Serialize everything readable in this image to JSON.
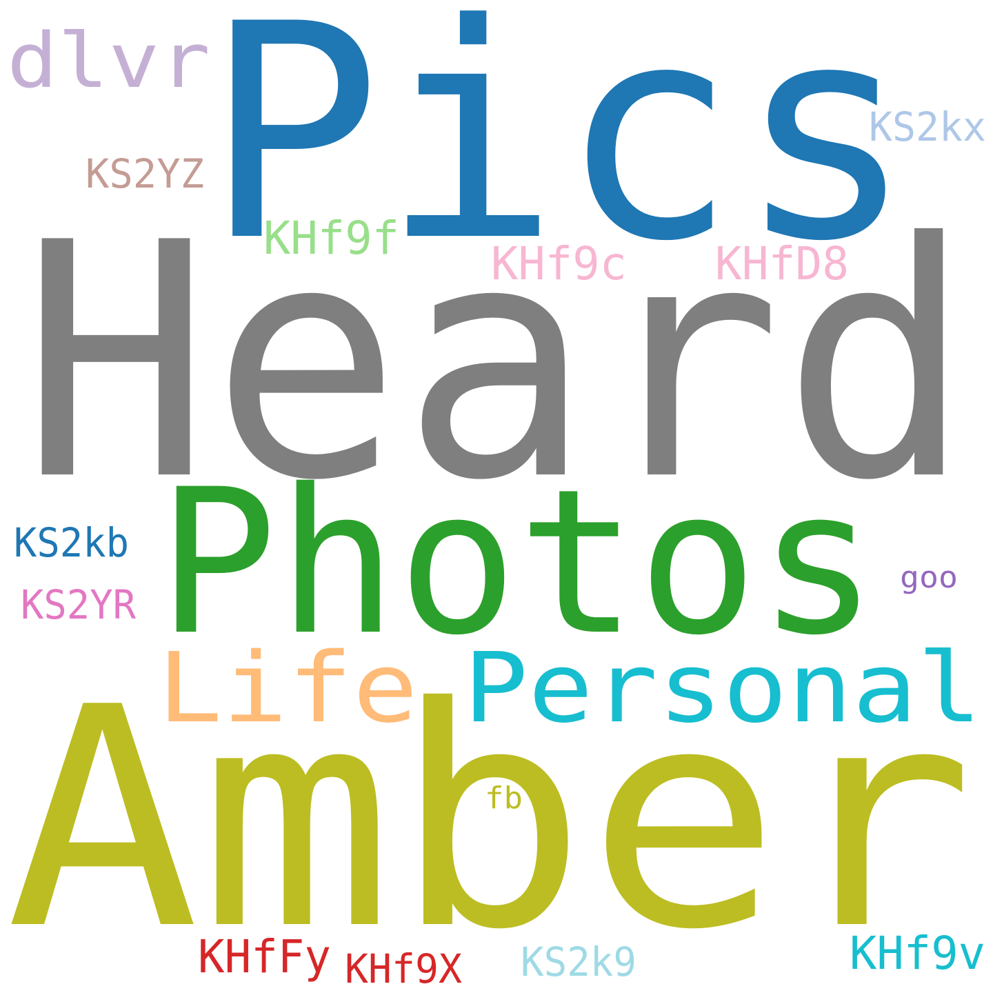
{
  "words": [
    {
      "key": "pics",
      "text": "Pics",
      "color": "#1f77b4"
    },
    {
      "key": "heard",
      "text": "Heard",
      "color": "#7f7f7f"
    },
    {
      "key": "photos",
      "text": "Photos",
      "color": "#2ca02c"
    },
    {
      "key": "amber",
      "text": "Amber",
      "color": "#bcbd22"
    },
    {
      "key": "personal",
      "text": "Personal",
      "color": "#17becf"
    },
    {
      "key": "life",
      "text": "Life",
      "color": "#ffbb78"
    },
    {
      "key": "dlvr",
      "text": "dlvr",
      "color": "#c5b0d5"
    },
    {
      "key": "ks2yz",
      "text": "KS2YZ",
      "color": "#c49c94"
    },
    {
      "key": "ks2kx",
      "text": "KS2kx",
      "color": "#aec7e8"
    },
    {
      "key": "khf9f",
      "text": "KHf9f",
      "color": "#98df8a"
    },
    {
      "key": "khf9c",
      "text": "KHf9c",
      "color": "#f7b6d2"
    },
    {
      "key": "khfd8",
      "text": "KHfD8",
      "color": "#f7b6d2"
    },
    {
      "key": "ks2kb",
      "text": "KS2kb",
      "color": "#1f77b4"
    },
    {
      "key": "ks2yr",
      "text": "KS2YR",
      "color": "#e377c2"
    },
    {
      "key": "goo",
      "text": "goo",
      "color": "#9467bd"
    },
    {
      "key": "fb",
      "text": "fb",
      "color": "#bcbd22"
    },
    {
      "key": "khffy",
      "text": "KHfFy",
      "color": "#d62728"
    },
    {
      "key": "khf9x",
      "text": "KHf9X",
      "color": "#d62728"
    },
    {
      "key": "ks2k9",
      "text": "KS2k9",
      "color": "#9edae5"
    },
    {
      "key": "khf9v",
      "text": "KHf9v",
      "color": "#17becf"
    }
  ]
}
